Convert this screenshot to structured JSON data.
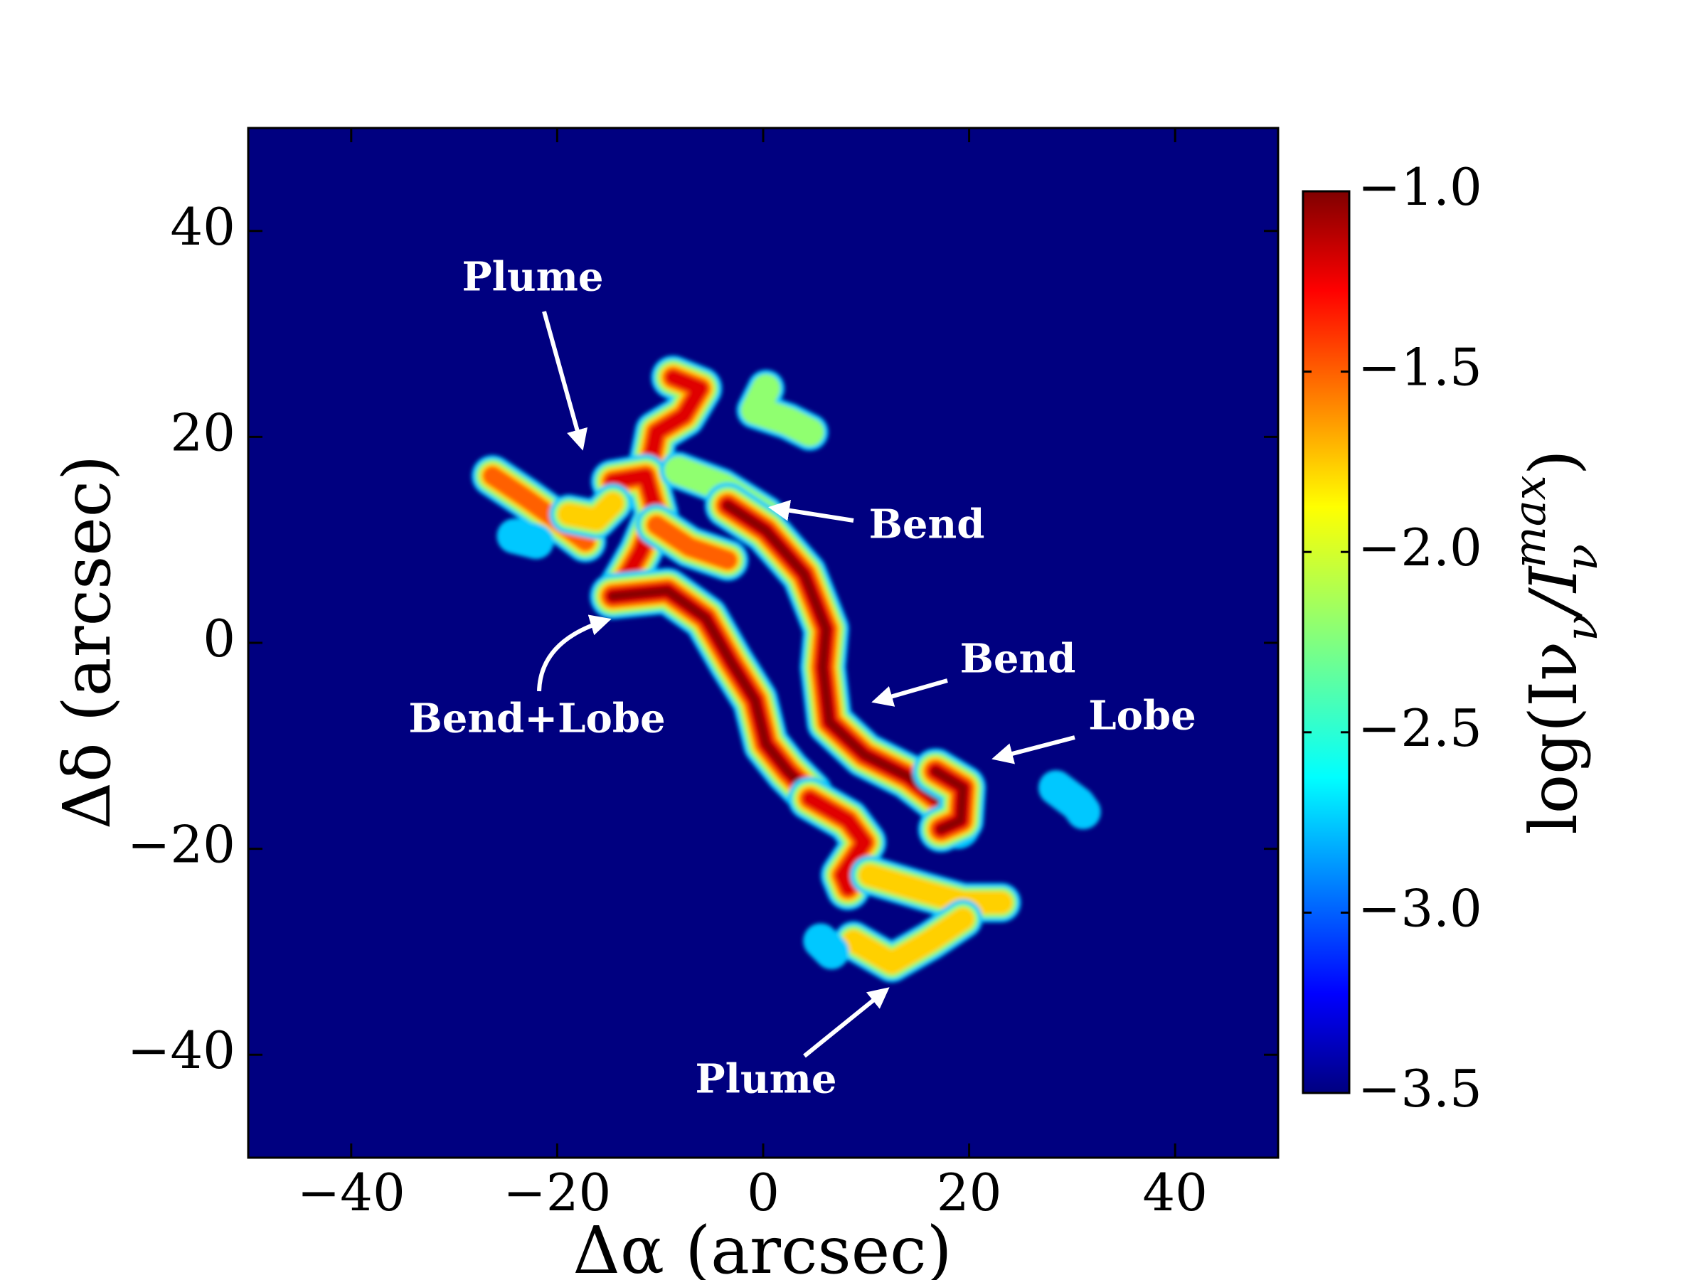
{
  "chart_data": {
    "type": "image",
    "xlabel": "Δα (arcsec)",
    "ylabel": "Δδ (arcsec)",
    "xlim": [
      -50,
      50
    ],
    "ylim": [
      -50,
      50
    ],
    "xticks": [
      {
        "value": -40,
        "label": "−40"
      },
      {
        "value": -20,
        "label": "−20"
      },
      0,
      20,
      40
    ],
    "yticks": [
      {
        "value": -40,
        "label": "−40"
      },
      {
        "value": -20,
        "label": "−20"
      },
      0,
      20,
      40
    ],
    "colorbar": {
      "label": "log(Iν/Iν^max)",
      "colormap": "jet",
      "clim": [
        -3.5,
        -1.0
      ],
      "ticks": [
        {
          "value": -3.5,
          "label": "−3.5"
        },
        {
          "value": -3.0,
          "label": "−3.0"
        },
        {
          "value": -2.5,
          "label": "−2.5"
        },
        {
          "value": -2.0,
          "label": "−2.0"
        },
        {
          "value": -1.5,
          "label": "−1.5"
        },
        {
          "value": -1.0,
          "label": "−1.0"
        }
      ]
    },
    "annotations": [
      "Plume",
      "Bend",
      "Bend+Lobe",
      "Bend",
      "Lobe",
      "Plume"
    ]
  }
}
